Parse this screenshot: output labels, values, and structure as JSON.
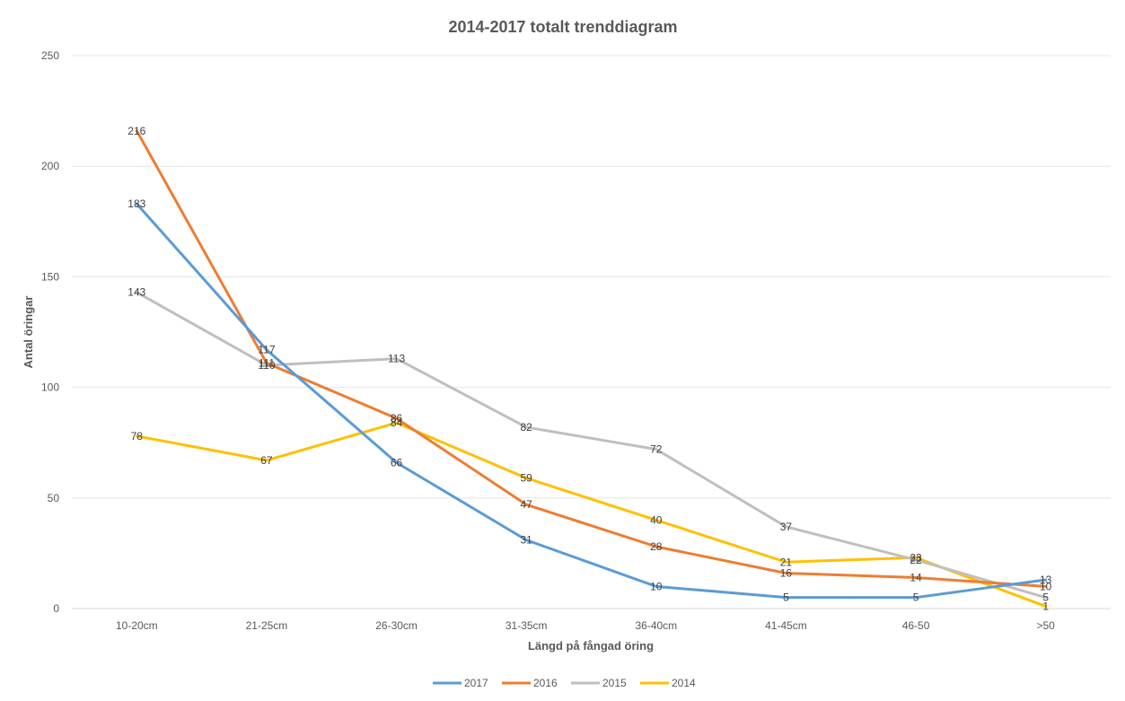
{
  "chart_data": {
    "type": "line",
    "title": "2014-2017 totalt trenddiagram",
    "xlabel": "Längd på fångad öring",
    "ylabel": "Antal öringar",
    "categories": [
      "10-20cm",
      "21-25cm",
      "26-30cm",
      "31-35cm",
      "36-40cm",
      "41-45cm",
      "46-50",
      ">50"
    ],
    "ylim": [
      0,
      250
    ],
    "yticks": [
      "0",
      "50",
      "100",
      "150",
      "200",
      "250"
    ],
    "grid": true,
    "legend_position": "bottom",
    "series": [
      {
        "name": "2017",
        "color": "#5B9BD5",
        "values": [
          183,
          117,
          66,
          31,
          10,
          5,
          5,
          13
        ]
      },
      {
        "name": "2016",
        "color": "#ED7D31",
        "values": [
          216,
          111,
          86,
          47,
          28,
          16,
          14,
          10
        ]
      },
      {
        "name": "2015",
        "color": "#BFBFBF",
        "values": [
          143,
          110,
          113,
          82,
          72,
          37,
          22,
          5
        ]
      },
      {
        "name": "2014",
        "color": "#FFC000",
        "values": [
          78,
          67,
          84,
          59,
          40,
          21,
          23,
          1
        ]
      }
    ]
  }
}
